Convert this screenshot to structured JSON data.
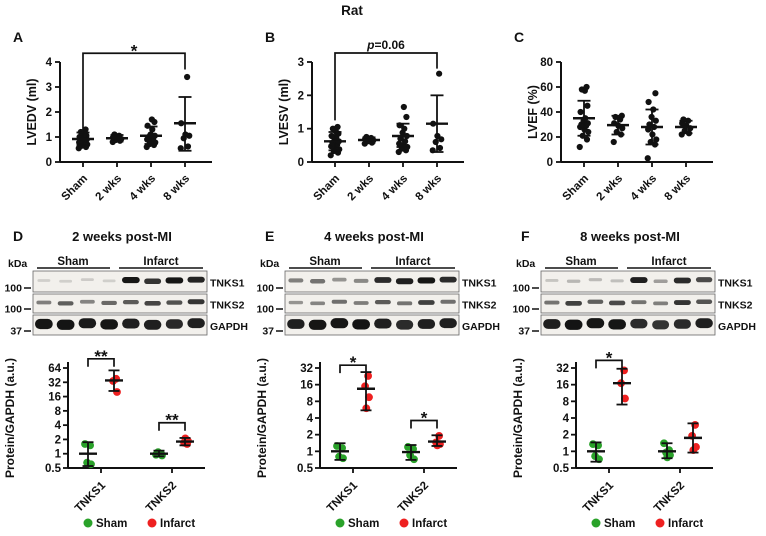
{
  "figure": {
    "title": "Rat"
  },
  "colors": {
    "sham": "#2aa22a",
    "infarct": "#ee2020",
    "points": "#111111"
  },
  "legend": {
    "sham": "Sham",
    "infarct": "Infarct"
  },
  "chart_data": {
    "top_panels": [
      {
        "label": "A",
        "type": "scatter",
        "ylabel": "LVEDV (ml)",
        "ylim": [
          0,
          4
        ],
        "yticks": [
          0,
          1,
          2,
          3,
          4
        ],
        "categories": [
          "Sham",
          "2 wks",
          "4 wks",
          "8 wks"
        ],
        "groups": [
          {
            "points": [
              0.55,
              0.6,
              0.65,
              0.7,
              0.72,
              0.78,
              0.8,
              0.85,
              0.9,
              0.95,
              1.0,
              1.0,
              1.05,
              1.1,
              1.2,
              1.3
            ],
            "mean": 0.92,
            "lo": 0.68,
            "hi": 1.18
          },
          {
            "points": [
              0.8,
              0.85,
              0.88,
              0.92,
              0.95,
              1.0,
              1.05,
              1.1
            ],
            "mean": 0.95,
            "lo": 0.82,
            "hi": 1.08
          },
          {
            "points": [
              0.6,
              0.68,
              0.72,
              0.78,
              0.85,
              0.9,
              0.95,
              1.0,
              1.05,
              1.1,
              1.3,
              1.45,
              1.6,
              1.7
            ],
            "mean": 1.05,
            "lo": 0.72,
            "hi": 1.42
          },
          {
            "points": [
              0.55,
              0.62,
              0.95,
              1.05,
              1.1,
              1.55,
              3.4
            ],
            "mean": 1.55,
            "lo": 0.45,
            "hi": 2.6
          }
        ],
        "significance": {
          "from": 0,
          "to": 3,
          "label": "*",
          "italic_p": false,
          "bar_y": 4.35,
          "leg_from_y": 1.0,
          "leg_to_y": 3.7
        }
      },
      {
        "label": "B",
        "type": "scatter",
        "ylabel": "LVESV (ml)",
        "ylim": [
          0,
          3
        ],
        "yticks": [
          0,
          1,
          2,
          3
        ],
        "categories": [
          "Sham",
          "2 wks",
          "4 wks",
          "8 wks"
        ],
        "groups": [
          {
            "points": [
              0.2,
              0.28,
              0.33,
              0.38,
              0.42,
              0.47,
              0.52,
              0.57,
              0.62,
              0.67,
              0.72,
              0.78,
              0.85,
              0.92,
              1.0,
              1.05
            ],
            "mean": 0.62,
            "lo": 0.35,
            "hi": 0.9
          },
          {
            "points": [
              0.55,
              0.58,
              0.62,
              0.65,
              0.67,
              0.7,
              0.72,
              0.75
            ],
            "mean": 0.66,
            "lo": 0.58,
            "hi": 0.74
          },
          {
            "points": [
              0.3,
              0.35,
              0.4,
              0.45,
              0.5,
              0.55,
              0.62,
              0.7,
              0.78,
              0.88,
              1.0,
              1.1,
              1.35,
              1.65
            ],
            "mean": 0.78,
            "lo": 0.45,
            "hi": 1.15
          },
          {
            "points": [
              0.35,
              0.42,
              0.6,
              0.68,
              0.78,
              1.15,
              2.65
            ],
            "mean": 1.15,
            "lo": 0.3,
            "hi": 2.0
          }
        ],
        "significance": {
          "from": 0,
          "to": 3,
          "label": "p=0.06",
          "italic_p": true,
          "bar_y": 3.27,
          "leg_from_y": 1.25,
          "leg_to_y": 2.8
        }
      },
      {
        "label": "C",
        "type": "scatter",
        "ylabel": "LVEF (%)",
        "ylim": [
          0,
          80
        ],
        "yticks": [
          0,
          20,
          40,
          60,
          80
        ],
        "categories": [
          "Sham",
          "2 wks",
          "4 wks",
          "8 wks"
        ],
        "groups": [
          {
            "points": [
              12,
              18,
              21,
              24,
              26,
              28,
              29,
              30,
              31,
              33,
              35,
              40,
              45,
              57,
              58,
              60
            ],
            "mean": 35,
            "lo": 21,
            "hi": 49
          },
          {
            "points": [
              16,
              22,
              24,
              27,
              29,
              31,
              34,
              36,
              37
            ],
            "mean": 29.5,
            "lo": 22,
            "hi": 37
          },
          {
            "points": [
              3,
              14,
              16,
              18,
              22,
              26,
              28,
              30,
              33,
              36,
              42,
              48,
              55
            ],
            "mean": 28,
            "lo": 14,
            "hi": 42
          },
          {
            "points": [
              22,
              23,
              25,
              27,
              29,
              31,
              33,
              34
            ],
            "mean": 28,
            "lo": 23,
            "hi": 33
          }
        ],
        "significance": null
      }
    ],
    "bottom_panels": [
      {
        "label": "D",
        "title": "2 weeks post-MI",
        "blot": {
          "kda_label": "kDa",
          "group_labels": [
            "Sham",
            "Infarct"
          ],
          "rows": [
            {
              "name": "TNKS1",
              "marker": "100",
              "bands": [
                0.07,
                0.06,
                0.09,
                0.07,
                0.95,
                0.8,
                0.95,
                0.88
              ]
            },
            {
              "name": "TNKS2",
              "marker": "100",
              "bands": [
                0.45,
                0.6,
                0.42,
                0.55,
                0.62,
                0.72,
                0.66,
                0.8
              ]
            },
            {
              "name": "GAPDH",
              "marker": "37",
              "bands": [
                0.95,
                0.96,
                0.92,
                0.95,
                0.9,
                0.9,
                0.86,
                0.9
              ]
            }
          ]
        },
        "plot": {
          "type": "scatter-log2",
          "ylabel": "Protein/GAPDH (a.u.)",
          "yticks": [
            0.5,
            1,
            2,
            4,
            8,
            16,
            32,
            64
          ],
          "categories": [
            "TNKS1",
            "TNKS2"
          ],
          "series": [
            {
              "name": "Sham",
              "color": "sham",
              "cats": [
                {
                  "points": [
                    1.6,
                    1.5,
                    0.65,
                    0.6
                  ],
                  "mean": 1.0,
                  "lo": 0.55,
                  "hi": 1.75
                },
                {
                  "points": [
                    0.95,
                    1.0,
                    1.08,
                    0.92
                  ],
                  "mean": 1.0,
                  "lo": 0.88,
                  "hi": 1.16
                }
              ]
            },
            {
              "name": "Infarct",
              "color": "infarct",
              "cats": [
                {
                  "points": [
                    38,
                    34,
                    20
                  ],
                  "mean": 35,
                  "lo": 21,
                  "hi": 57
                },
                {
                  "points": [
                    1.6,
                    1.7,
                    1.85,
                    2.1
                  ],
                  "mean": 1.8,
                  "lo": 1.5,
                  "hi": 2.15
                }
              ]
            }
          ],
          "significance": [
            {
              "cat": 0,
              "label": "**",
              "y": 100
            },
            {
              "cat": 1,
              "label": "**",
              "y": 4.5
            }
          ]
        }
      },
      {
        "label": "E",
        "title": "4 weeks post-MI",
        "blot": {
          "kda_label": "kDa",
          "group_labels": [
            "Sham",
            "Infarct"
          ],
          "rows": [
            {
              "name": "TNKS1",
              "marker": "100",
              "bands": [
                0.45,
                0.5,
                0.35,
                0.4,
                0.85,
                0.9,
                0.95,
                0.85
              ]
            },
            {
              "name": "TNKS2",
              "marker": "100",
              "bands": [
                0.35,
                0.42,
                0.52,
                0.46,
                0.62,
                0.5,
                0.75,
                0.52
              ]
            },
            {
              "name": "GAPDH",
              "marker": "37",
              "bands": [
                0.9,
                0.95,
                0.95,
                0.96,
                0.9,
                0.85,
                0.9,
                0.9
              ]
            }
          ]
        },
        "plot": {
          "type": "scatter-log2",
          "ylabel": "Protein/GAPDH (a.u.)",
          "yticks": [
            0.5,
            1,
            2,
            4,
            8,
            16,
            32
          ],
          "categories": [
            "TNKS1",
            "TNKS2"
          ],
          "series": [
            {
              "name": "Sham",
              "color": "sham",
              "cats": [
                {
                  "points": [
                    1.25,
                    1.15,
                    0.8,
                    0.75
                  ],
                  "mean": 1.0,
                  "lo": 0.7,
                  "hi": 1.4
                },
                {
                  "points": [
                    1.2,
                    1.1,
                    0.85,
                    0.72
                  ],
                  "mean": 0.97,
                  "lo": 0.7,
                  "hi": 1.3
                }
              ]
            },
            {
              "name": "Infarct",
              "color": "infarct",
              "cats": [
                {
                  "points": [
                    23,
                    15,
                    9.5,
                    6
                  ],
                  "mean": 13.5,
                  "lo": 5.5,
                  "hi": 27
                },
                {
                  "points": [
                    1.9,
                    1.45,
                    1.35,
                    1.28
                  ],
                  "mean": 1.5,
                  "lo": 1.25,
                  "hi": 1.95
                }
              ]
            }
          ],
          "significance": [
            {
              "cat": 0,
              "label": "*",
              "y": 36
            },
            {
              "cat": 1,
              "label": "*",
              "y": 3.6
            }
          ]
        }
      },
      {
        "label": "F",
        "title": "8 weeks post-MI",
        "blot": {
          "kda_label": "kDa",
          "group_labels": [
            "Sham",
            "Infarct"
          ],
          "rows": [
            {
              "name": "TNKS1",
              "marker": "100",
              "bands": [
                0.12,
                0.18,
                0.16,
                0.14,
                0.9,
                0.3,
                0.85,
                0.7
              ]
            },
            {
              "name": "TNKS2",
              "marker": "100",
              "bands": [
                0.5,
                0.75,
                0.6,
                0.7,
                0.5,
                0.45,
                0.8,
                0.65
              ]
            },
            {
              "name": "GAPDH",
              "marker": "37",
              "bands": [
                0.9,
                0.96,
                0.95,
                0.95,
                0.85,
                0.8,
                0.85,
                0.9
              ]
            }
          ]
        },
        "plot": {
          "type": "scatter-log2",
          "ylabel": "Protein/GAPDH (a.u.)",
          "yticks": [
            0.5,
            1,
            2,
            4,
            8,
            16,
            32
          ],
          "categories": [
            "TNKS1",
            "TNKS2"
          ],
          "series": [
            {
              "name": "Sham",
              "color": "sham",
              "cats": [
                {
                  "points": [
                    1.35,
                    1.28,
                    0.82,
                    0.72
                  ],
                  "mean": 1.0,
                  "lo": 0.65,
                  "hi": 1.45
                },
                {
                  "points": [
                    1.4,
                    1.05,
                    0.95,
                    0.85,
                    0.78
                  ],
                  "mean": 1.0,
                  "lo": 0.75,
                  "hi": 1.4
                }
              ]
            },
            {
              "name": "Infarct",
              "color": "infarct",
              "cats": [
                {
                  "points": [
                    29,
                    17,
                    9
                  ],
                  "mean": 17,
                  "lo": 7,
                  "hi": 31
                },
                {
                  "points": [
                    3.0,
                    1.9,
                    1.2,
                    1.05
                  ],
                  "mean": 1.75,
                  "lo": 0.95,
                  "hi": 3.2
                }
              ]
            }
          ],
          "significance": [
            {
              "cat": 0,
              "label": "*",
              "y": 44
            }
          ]
        }
      }
    ]
  }
}
